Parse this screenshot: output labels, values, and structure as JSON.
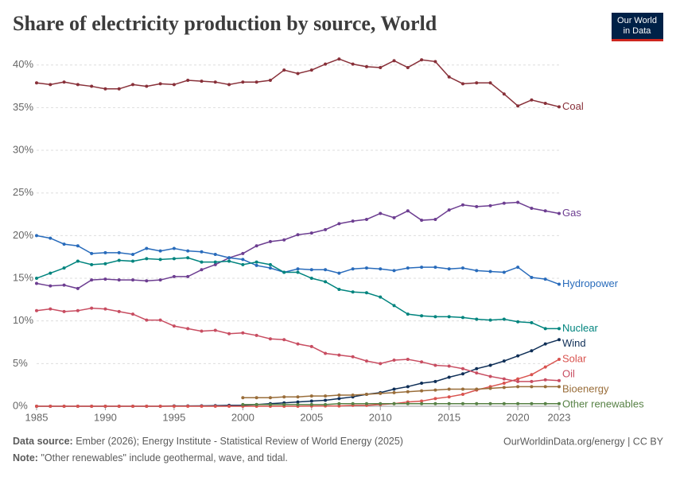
{
  "chart_data": {
    "type": "line",
    "title": "Share of electricity production by source, World",
    "x": [
      1985,
      1986,
      1987,
      1988,
      1989,
      1990,
      1991,
      1992,
      1993,
      1994,
      1995,
      1996,
      1997,
      1998,
      1999,
      2000,
      2001,
      2002,
      2003,
      2004,
      2005,
      2006,
      2007,
      2008,
      2009,
      2010,
      2011,
      2012,
      2013,
      2014,
      2015,
      2016,
      2017,
      2018,
      2019,
      2020,
      2021,
      2022,
      2023
    ],
    "xlim": [
      1985,
      2023
    ],
    "xticks": [
      1985,
      1990,
      1995,
      2000,
      2005,
      2010,
      2015,
      2020,
      2023
    ],
    "ylim": [
      0,
      41
    ],
    "yticks": [
      {
        "value": 0,
        "label": "0%"
      },
      {
        "value": 5,
        "label": "5%"
      },
      {
        "value": 10,
        "label": "10%"
      },
      {
        "value": 15,
        "label": "15%"
      },
      {
        "value": 20,
        "label": "20%"
      },
      {
        "value": 25,
        "label": "25%"
      },
      {
        "value": 30,
        "label": "30%"
      },
      {
        "value": 35,
        "label": "35%"
      },
      {
        "value": 40,
        "label": "40%"
      }
    ],
    "grid": true,
    "series": [
      {
        "name": "Coal",
        "color": "#883039",
        "values": [
          37.9,
          37.7,
          38.0,
          37.7,
          37.5,
          37.2,
          37.2,
          37.7,
          37.5,
          37.8,
          37.7,
          38.2,
          38.1,
          38.0,
          37.7,
          38.0,
          38.0,
          38.2,
          39.4,
          39.0,
          39.4,
          40.1,
          40.7,
          40.1,
          39.8,
          39.7,
          40.5,
          39.7,
          40.6,
          40.4,
          38.6,
          37.8,
          37.9,
          37.9,
          36.6,
          35.2,
          35.9,
          35.5,
          35.1
        ]
      },
      {
        "name": "Gas",
        "color": "#6d3e91",
        "values": [
          14.4,
          14.1,
          14.2,
          13.8,
          14.8,
          14.9,
          14.8,
          14.8,
          14.7,
          14.8,
          15.2,
          15.2,
          16.0,
          16.6,
          17.4,
          17.9,
          18.8,
          19.3,
          19.5,
          20.1,
          20.3,
          20.7,
          21.4,
          21.7,
          21.9,
          22.6,
          22.1,
          22.9,
          21.8,
          21.9,
          23.0,
          23.6,
          23.4,
          23.5,
          23.8,
          23.9,
          23.2,
          22.9,
          22.6
        ]
      },
      {
        "name": "Hydropower",
        "color": "#286bbb",
        "values": [
          20.0,
          19.7,
          19.0,
          18.8,
          17.9,
          18.0,
          18.0,
          17.8,
          18.5,
          18.2,
          18.5,
          18.2,
          18.1,
          17.8,
          17.4,
          17.2,
          16.5,
          16.2,
          15.7,
          16.1,
          16.0,
          16.0,
          15.6,
          16.1,
          16.2,
          16.1,
          15.9,
          16.2,
          16.3,
          16.3,
          16.1,
          16.2,
          15.9,
          15.8,
          15.7,
          16.3,
          15.1,
          14.9,
          14.3
        ]
      },
      {
        "name": "Nuclear",
        "color": "#00847e",
        "values": [
          15.0,
          15.6,
          16.2,
          17.0,
          16.6,
          16.7,
          17.1,
          17.0,
          17.3,
          17.2,
          17.3,
          17.4,
          16.9,
          16.9,
          17.0,
          16.6,
          16.9,
          16.6,
          15.7,
          15.7,
          15.0,
          14.6,
          13.7,
          13.4,
          13.3,
          12.8,
          11.8,
          10.8,
          10.6,
          10.5,
          10.5,
          10.4,
          10.2,
          10.1,
          10.2,
          9.9,
          9.8,
          9.1,
          9.1
        ]
      },
      {
        "name": "Wind",
        "color": "#0f2f57",
        "values": [
          0,
          0,
          0,
          0,
          0,
          0,
          0,
          0,
          0,
          0,
          0.03,
          0.04,
          0.05,
          0.07,
          0.1,
          0.1,
          0.2,
          0.3,
          0.4,
          0.5,
          0.6,
          0.7,
          0.9,
          1.1,
          1.4,
          1.6,
          2.0,
          2.3,
          2.7,
          2.9,
          3.4,
          3.8,
          4.4,
          4.8,
          5.3,
          5.9,
          6.5,
          7.3,
          7.8
        ]
      },
      {
        "name": "Solar",
        "color": "#d9534f",
        "values": [
          0,
          0,
          0,
          0,
          0,
          0,
          0,
          0,
          0,
          0,
          0,
          0,
          0,
          0,
          0,
          0,
          0,
          0,
          0,
          0,
          0.02,
          0.03,
          0.04,
          0.1,
          0.1,
          0.2,
          0.3,
          0.5,
          0.6,
          0.9,
          1.1,
          1.4,
          1.9,
          2.3,
          2.7,
          3.2,
          3.7,
          4.6,
          5.5
        ]
      },
      {
        "name": "Oil",
        "color": "#c84d61",
        "values": [
          11.2,
          11.4,
          11.1,
          11.2,
          11.5,
          11.4,
          11.1,
          10.8,
          10.1,
          10.1,
          9.4,
          9.1,
          8.8,
          8.9,
          8.5,
          8.6,
          8.3,
          7.9,
          7.8,
          7.3,
          7.0,
          6.2,
          6.0,
          5.8,
          5.3,
          5.0,
          5.4,
          5.5,
          5.2,
          4.8,
          4.7,
          4.4,
          3.9,
          3.5,
          3.2,
          2.9,
          2.9,
          3.1,
          3.0
        ]
      },
      {
        "name": "Bioenergy",
        "color": "#996d39",
        "values": [
          null,
          null,
          null,
          null,
          null,
          null,
          null,
          null,
          null,
          null,
          null,
          null,
          null,
          null,
          null,
          1.0,
          1.0,
          1.0,
          1.1,
          1.1,
          1.2,
          1.2,
          1.3,
          1.3,
          1.4,
          1.5,
          1.6,
          1.7,
          1.8,
          1.9,
          2.0,
          2.0,
          2.0,
          2.1,
          2.2,
          2.3,
          2.3,
          2.3,
          2.3
        ]
      },
      {
        "name": "Other renewables",
        "color": "#578145",
        "values": [
          null,
          null,
          null,
          null,
          null,
          null,
          null,
          null,
          null,
          null,
          null,
          null,
          null,
          null,
          null,
          0.2,
          0.2,
          0.2,
          0.2,
          0.2,
          0.2,
          0.2,
          0.3,
          0.3,
          0.3,
          0.3,
          0.3,
          0.3,
          0.3,
          0.3,
          0.3,
          0.3,
          0.3,
          0.3,
          0.3,
          0.3,
          0.3,
          0.3,
          0.3
        ]
      }
    ]
  },
  "logo": [
    "Our World",
    "in Data"
  ],
  "footer": {
    "source_label": "Data source:",
    "source_text": "Ember (2026); Energy Institute - Statistical Review of World Energy (2025)",
    "url": "OurWorldinData.org/energy | CC BY",
    "note_label": "Note:",
    "note_text": "\"Other renewables\" include geothermal, wave, and tidal."
  }
}
